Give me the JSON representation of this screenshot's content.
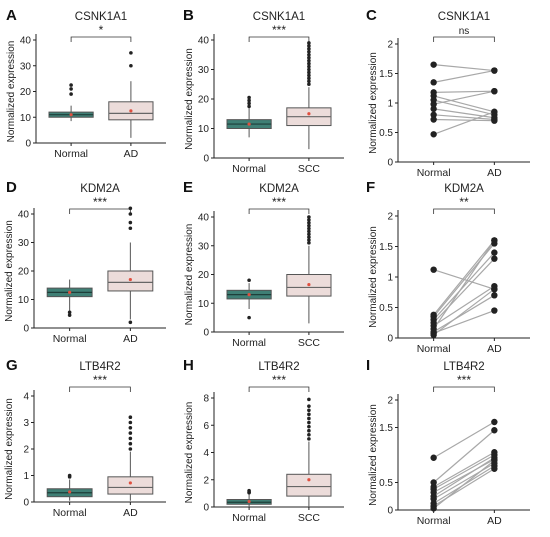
{
  "chart_data": [
    {
      "panel_letter": "A",
      "type": "box",
      "title": "CSNK1A1",
      "ylabel": "Normalized expression",
      "ylim": [
        0,
        40
      ],
      "yticks": [
        0,
        10,
        20,
        30,
        40
      ],
      "ytick_labels": [
        "0",
        "10",
        "20",
        "30",
        "40"
      ],
      "categories": [
        "Normal",
        "AD"
      ],
      "significance": "*",
      "boxes": [
        {
          "name": "Normal",
          "q1": 10,
          "median": 11,
          "q3": 12,
          "whisker_low": 8.5,
          "whisker_high": 14.5,
          "mean": 11,
          "outliers": [
            19,
            21,
            22.5
          ]
        },
        {
          "name": "AD",
          "q1": 9,
          "median": 11.5,
          "q3": 16,
          "whisker_low": 2,
          "whisker_high": 24,
          "mean": 12.5,
          "outliers": [
            30,
            35
          ]
        }
      ]
    },
    {
      "panel_letter": "B",
      "type": "box",
      "title": "CSNK1A1",
      "ylabel": "Normalized expression",
      "ylim": [
        0,
        40
      ],
      "yticks": [
        0,
        10,
        20,
        30,
        40
      ],
      "ytick_labels": [
        "0",
        "10",
        "20",
        "30",
        "40"
      ],
      "categories": [
        "Normal",
        "SCC"
      ],
      "significance": "***",
      "boxes": [
        {
          "name": "Normal",
          "q1": 10,
          "median": 11.5,
          "q3": 13,
          "whisker_low": 7,
          "whisker_high": 17,
          "mean": 11.5,
          "outliers": [
            17.5,
            18.5,
            19.5,
            20.5
          ]
        },
        {
          "name": "SCC",
          "q1": 11,
          "median": 14,
          "q3": 17,
          "whisker_low": 3,
          "whisker_high": 24,
          "mean": 15,
          "outliers": [
            25,
            26,
            27,
            28,
            29,
            30,
            31,
            32,
            33,
            34,
            35,
            36,
            37,
            38,
            39
          ]
        }
      ]
    },
    {
      "panel_letter": "C",
      "type": "paired",
      "title": "CSNK1A1",
      "ylabel": "Normalized expression",
      "ylim": [
        0,
        2
      ],
      "yticks": [
        0,
        0.5,
        1,
        1.5,
        2
      ],
      "ytick_labels": [
        "0",
        "0.5",
        "1",
        "1.5",
        "2"
      ],
      "categories": [
        "Normal",
        "AD"
      ],
      "significance": "ns",
      "pairs": [
        [
          1.65,
          1.55
        ],
        [
          1.35,
          1.55
        ],
        [
          1.18,
          1.2
        ],
        [
          1.12,
          0.85
        ],
        [
          1.05,
          0.8
        ],
        [
          0.98,
          1.2
        ],
        [
          0.9,
          0.75
        ],
        [
          0.8,
          0.72
        ],
        [
          0.72,
          0.7
        ],
        [
          0.47,
          0.85
        ]
      ]
    },
    {
      "panel_letter": "D",
      "type": "box",
      "title": "KDM2A",
      "ylabel": "Normalized expression",
      "ylim": [
        0,
        40
      ],
      "yticks": [
        0,
        10,
        20,
        30,
        40
      ],
      "ytick_labels": [
        "0",
        "10",
        "20",
        "30",
        "40"
      ],
      "categories": [
        "Normal",
        "AD"
      ],
      "significance": "***",
      "boxes": [
        {
          "name": "Normal",
          "q1": 11,
          "median": 12.5,
          "q3": 14,
          "whisker_low": 6,
          "whisker_high": 17,
          "mean": 12.5,
          "outliers": [
            4.5,
            5.5
          ]
        },
        {
          "name": "AD",
          "q1": 13,
          "median": 16,
          "q3": 20,
          "whisker_low": 3,
          "whisker_high": 30,
          "mean": 17,
          "outliers": [
            2,
            35,
            37,
            40,
            42
          ]
        }
      ]
    },
    {
      "panel_letter": "E",
      "type": "box",
      "title": "KDM2A",
      "ylabel": "Normalized expression",
      "ylim": [
        0,
        40
      ],
      "yticks": [
        0,
        10,
        20,
        30,
        40
      ],
      "ytick_labels": [
        "0",
        "10",
        "20",
        "30",
        "40"
      ],
      "categories": [
        "Normal",
        "SCC"
      ],
      "significance": "***",
      "boxes": [
        {
          "name": "Normal",
          "q1": 11.5,
          "median": 13,
          "q3": 14.5,
          "whisker_low": 8,
          "whisker_high": 17,
          "mean": 13,
          "outliers": [
            5,
            18
          ]
        },
        {
          "name": "SCC",
          "q1": 12.5,
          "median": 15.5,
          "q3": 20,
          "whisker_low": 3,
          "whisker_high": 30,
          "mean": 16.5,
          "outliers": [
            31,
            32,
            33,
            34,
            35,
            36,
            37,
            38,
            39,
            40
          ]
        }
      ]
    },
    {
      "panel_letter": "F",
      "type": "paired",
      "title": "KDM2A",
      "ylabel": "Normalized expression",
      "ylim": [
        0,
        2
      ],
      "yticks": [
        0,
        0.5,
        1,
        1.5,
        2
      ],
      "ytick_labels": [
        "0",
        "0.5",
        "1",
        "1.5",
        "2"
      ],
      "categories": [
        "Normal",
        "AD"
      ],
      "significance": "**",
      "pairs": [
        [
          1.12,
          0.8
        ],
        [
          0.38,
          1.6
        ],
        [
          0.35,
          1.55
        ],
        [
          0.3,
          1.4
        ],
        [
          0.25,
          1.3
        ],
        [
          0.2,
          0.85
        ],
        [
          0.15,
          1.6
        ],
        [
          0.1,
          0.7
        ],
        [
          0.08,
          0.45
        ],
        [
          0.05,
          0.8
        ]
      ]
    },
    {
      "panel_letter": "G",
      "type": "box",
      "title": "LTB4R2",
      "ylabel": "Normalized expression",
      "ylim": [
        0,
        4
      ],
      "yticks": [
        0,
        1,
        2,
        3,
        4
      ],
      "ytick_labels": [
        "0",
        "1",
        "2",
        "3",
        "4"
      ],
      "categories": [
        "Normal",
        "AD"
      ],
      "significance": "***",
      "boxes": [
        {
          "name": "Normal",
          "q1": 0.2,
          "median": 0.35,
          "q3": 0.5,
          "whisker_low": 0.05,
          "whisker_high": 0.85,
          "mean": 0.38,
          "outliers": [
            0.95,
            1.0
          ]
        },
        {
          "name": "AD",
          "q1": 0.3,
          "median": 0.55,
          "q3": 0.95,
          "whisker_low": 0.05,
          "whisker_high": 1.9,
          "mean": 0.72,
          "outliers": [
            2.0,
            2.2,
            2.4,
            2.6,
            2.8,
            3.0,
            3.2
          ]
        }
      ]
    },
    {
      "panel_letter": "H",
      "type": "box",
      "title": "LTB4R2",
      "ylabel": "Normalized expression",
      "ylim": [
        0,
        8
      ],
      "yticks": [
        0,
        2,
        4,
        6,
        8
      ],
      "ytick_labels": [
        "0",
        "2",
        "4",
        "6",
        "8"
      ],
      "categories": [
        "Normal",
        "SCC"
      ],
      "significance": "***",
      "boxes": [
        {
          "name": "Normal",
          "q1": 0.2,
          "median": 0.35,
          "q3": 0.55,
          "whisker_low": 0.05,
          "whisker_high": 1.0,
          "mean": 0.4,
          "outliers": [
            1.05,
            1.1,
            1.2
          ]
        },
        {
          "name": "SCC",
          "q1": 0.8,
          "median": 1.5,
          "q3": 2.4,
          "whisker_low": 0.05,
          "whisker_high": 4.8,
          "mean": 2.0,
          "outliers": [
            5.0,
            5.3,
            5.6,
            5.9,
            6.2,
            6.5,
            6.8,
            7.1,
            7.4,
            7.9
          ]
        }
      ]
    },
    {
      "panel_letter": "I",
      "type": "paired",
      "title": "LTB4R2",
      "ylabel": "Normalized expression",
      "ylim": [
        0,
        2
      ],
      "yticks": [
        0,
        0.5,
        1.5,
        2
      ],
      "ytick_labels": [
        "0",
        "0.5",
        "1.5",
        "2"
      ],
      "categories": [
        "Normal",
        "AD"
      ],
      "significance": "***",
      "pairs": [
        [
          0.95,
          1.6
        ],
        [
          0.5,
          1.45
        ],
        [
          0.42,
          1.05
        ],
        [
          0.38,
          1.0
        ],
        [
          0.32,
          0.92
        ],
        [
          0.25,
          0.95
        ],
        [
          0.2,
          0.85
        ],
        [
          0.12,
          0.8
        ],
        [
          0.07,
          0.75
        ],
        [
          0.03,
          0.9
        ]
      ]
    }
  ]
}
